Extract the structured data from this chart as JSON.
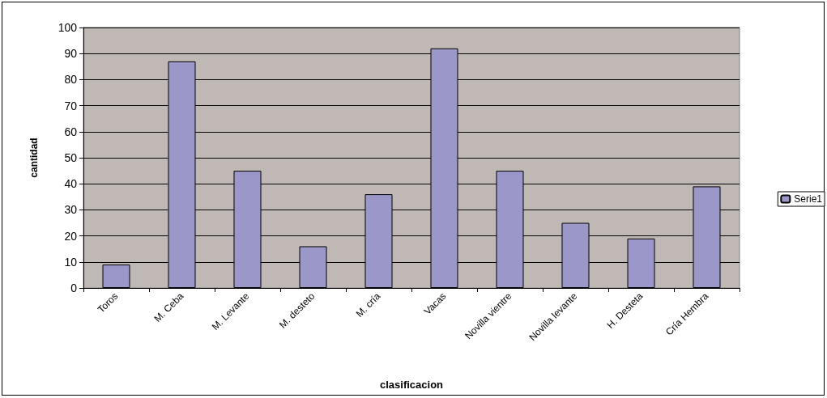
{
  "chart_data": {
    "type": "bar",
    "xlabel": "clasificacion",
    "ylabel": "cantidad",
    "categories": [
      "Toros",
      "M. Ceba",
      "M. Levante",
      "M. desteto",
      "M. cría",
      "Vacas",
      "Novilla vientre",
      "Novilla levante",
      "H. Desteta",
      "Cría Hembra"
    ],
    "series": [
      {
        "name": "Serie1",
        "color": "#9b97c9",
        "values": [
          9,
          87,
          45,
          16,
          36,
          92,
          45,
          25,
          19,
          39
        ]
      }
    ],
    "ylim": [
      0,
      100
    ],
    "yticks": [
      0,
      10,
      20,
      30,
      40,
      50,
      60,
      70,
      80,
      90,
      100
    ],
    "grid": "y",
    "legend": "right"
  }
}
